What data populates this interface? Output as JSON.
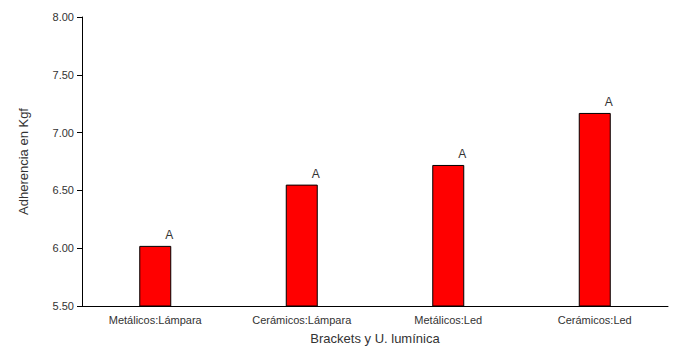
{
  "chart_data": {
    "type": "bar",
    "x_label": "Brackets y U. lumínica",
    "y_label": "Adherencia en Kgf",
    "categories": [
      "Metálicos:Lámpara",
      "Cerámicos:Lámpara",
      "Metálicos:Led",
      "Cerámicos:Led"
    ],
    "values": [
      6.02,
      6.55,
      6.72,
      7.17
    ],
    "annotations": [
      "A",
      "A",
      "A",
      "A"
    ],
    "color": "#ff0000",
    "ylim": [
      5.5,
      8.0
    ],
    "yticks": [
      {
        "value": 5.5,
        "label": "5.50"
      },
      {
        "value": 6.0,
        "label": "6.00"
      },
      {
        "value": 6.5,
        "label": "6.50"
      },
      {
        "value": 7.0,
        "label": "7.00"
      },
      {
        "value": 7.5,
        "label": "7.50"
      },
      {
        "value": 8.0,
        "label": "8.00"
      }
    ],
    "grid": false
  }
}
